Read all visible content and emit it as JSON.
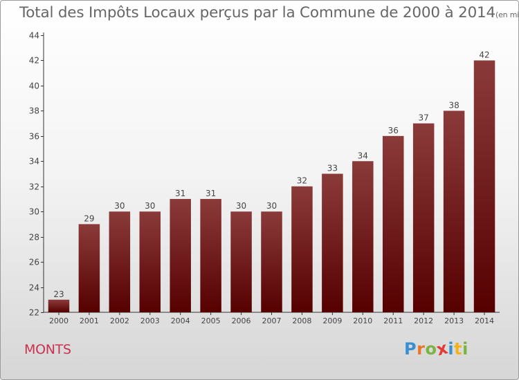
{
  "chart_data": {
    "type": "bar",
    "title": "Total des Impôts Locaux perçus par la Commune de 2000 à 2014",
    "unit_note": "(en milliers d'€)",
    "categories": [
      "2000",
      "2001",
      "2002",
      "2003",
      "2004",
      "2005",
      "2006",
      "2007",
      "2008",
      "2009",
      "2010",
      "2011",
      "2012",
      "2013",
      "2014"
    ],
    "values": [
      23,
      29,
      30,
      30,
      31,
      31,
      30,
      30,
      32,
      33,
      34,
      36,
      37,
      38,
      42
    ],
    "ylim": [
      22,
      44
    ],
    "yticks": [
      22,
      24,
      26,
      28,
      30,
      32,
      34,
      36,
      38,
      40,
      42,
      44
    ],
    "xlabel": "",
    "ylabel": "",
    "grid": false,
    "bar_color_top": "#8b3a3a",
    "bar_color_bottom": "#560000"
  },
  "commune_name": "MONTS",
  "logo": {
    "letters": [
      "P",
      "r",
      "o",
      "x",
      "i",
      "t",
      "i"
    ],
    "colors": [
      "#3a8fd0",
      "#e8762c",
      "#7cb342",
      "#e53935",
      "#3a8fd0",
      "#f2b21c",
      "#7cb342"
    ]
  }
}
